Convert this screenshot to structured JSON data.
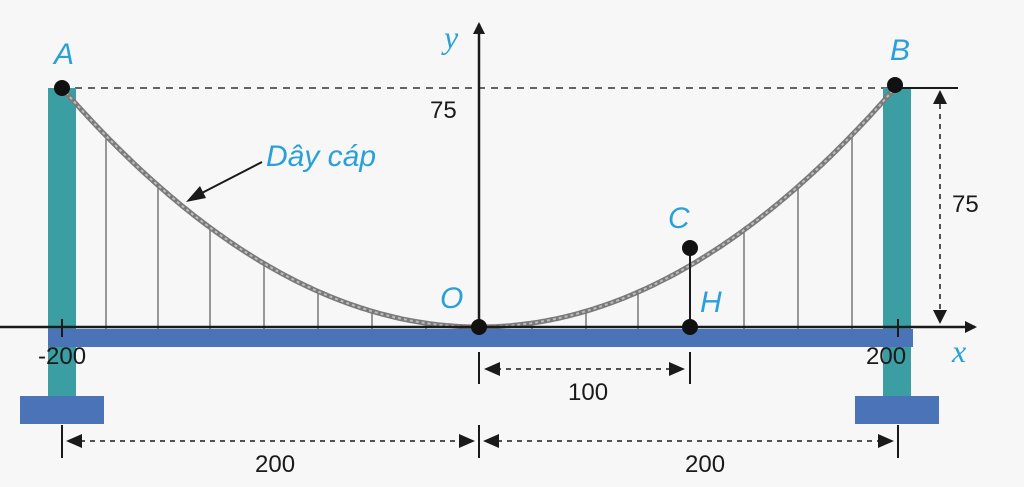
{
  "diagram": {
    "points": {
      "A": "A",
      "B": "B",
      "C": "C",
      "O": "O",
      "H": "H"
    },
    "axes": {
      "x": "x",
      "y": "y"
    },
    "cable_label": "Dây cáp",
    "tick_left": "-200",
    "tick_right": "200",
    "height_label_axis": "75",
    "height_label_side": "75",
    "dim_oh": "100",
    "dim_left": "200",
    "dim_right": "200"
  },
  "colors": {
    "tower": "#3a9ea3",
    "deck": "#4a73b8",
    "label": "#2aa0d8",
    "cable": "#777777"
  }
}
